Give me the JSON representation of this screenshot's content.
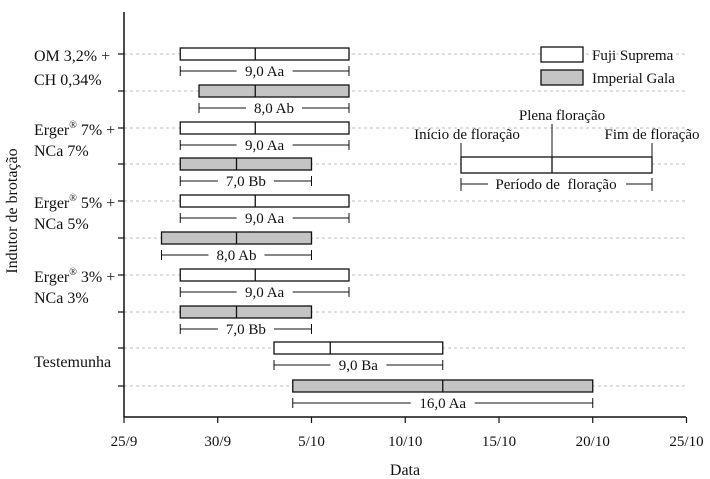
{
  "chart_data": {
    "type": "gantt",
    "ylabel": "Indutor de brotação",
    "xlabel": "Data",
    "x_tick_labels": [
      "25/9",
      "30/9",
      "5/10",
      "10/10",
      "15/10",
      "20/10",
      "25/10"
    ],
    "x_ticks_days": [
      0,
      5,
      10,
      15,
      20,
      25,
      30
    ],
    "x_origin_date": "25/9",
    "xlim_days": [
      0,
      30
    ],
    "grid": "horizontal-dashed",
    "legend_position": "top-right",
    "series": [
      {
        "name": "Fuji Suprema",
        "color": "#ffffff"
      },
      {
        "name": "Imperial Gala",
        "color": "#c4c4c4"
      }
    ],
    "groups": [
      {
        "label_lines": [
          "OM 3,2% +",
          "CH 0,34%"
        ],
        "bars": [
          {
            "series": 0,
            "start": 3,
            "peak": 7,
            "end": 12,
            "label": "9,0 Aa"
          },
          {
            "series": 1,
            "start": 4,
            "peak": 7,
            "end": 12,
            "label": "8,0 Ab"
          }
        ]
      },
      {
        "label_lines": [
          "Erger® 7% +",
          "NCa 7%"
        ],
        "bars": [
          {
            "series": 0,
            "start": 3,
            "peak": 7,
            "end": 12,
            "label": "9,0 Aa"
          },
          {
            "series": 1,
            "start": 3,
            "peak": 6,
            "end": 10,
            "label": "7,0 Bb"
          }
        ]
      },
      {
        "label_lines": [
          "Erger® 5% +",
          "NCa 5%"
        ],
        "bars": [
          {
            "series": 0,
            "start": 3,
            "peak": 7,
            "end": 12,
            "label": "9,0 Aa"
          },
          {
            "series": 1,
            "start": 2,
            "peak": 6,
            "end": 10,
            "label": "8,0 Ab"
          }
        ]
      },
      {
        "label_lines": [
          "Erger® 3% +",
          "NCa 3%"
        ],
        "bars": [
          {
            "series": 0,
            "start": 3,
            "peak": 7,
            "end": 12,
            "label": "9,0 Aa"
          },
          {
            "series": 1,
            "start": 3,
            "peak": 6,
            "end": 10,
            "label": "7,0 Bb"
          }
        ]
      },
      {
        "label_lines": [
          "Testemunha"
        ],
        "bars": [
          {
            "series": 0,
            "start": 8,
            "peak": 11,
            "end": 17,
            "label": "9,0 Ba"
          },
          {
            "series": 1,
            "start": 9,
            "peak": 17,
            "end": 25,
            "label": "16,0 Aa"
          }
        ]
      }
    ],
    "key": {
      "start_label": "Início de floração",
      "peak_label": "Plena floração",
      "end_label": "Fim de floração",
      "period_label": "Período de  floração"
    }
  }
}
